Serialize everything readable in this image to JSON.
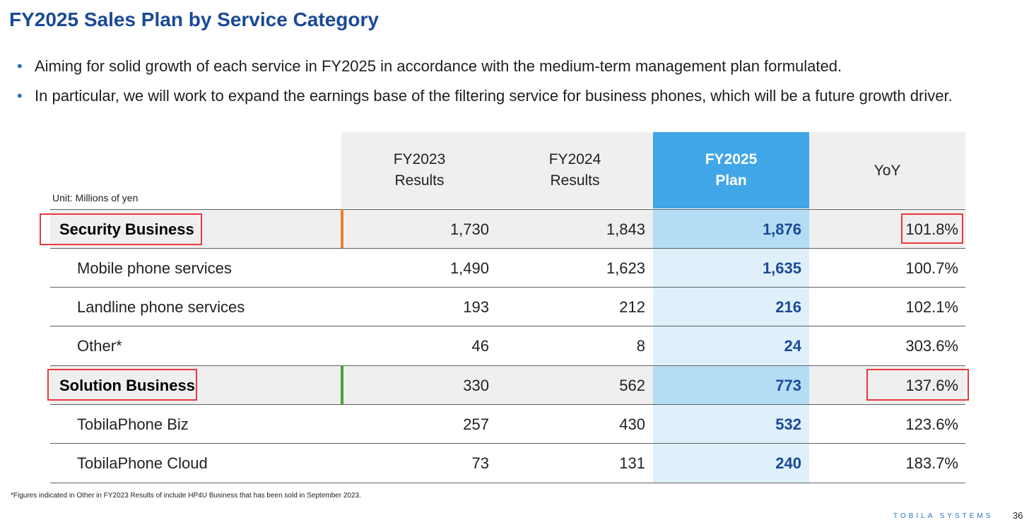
{
  "title": "FY2025 Sales Plan by Service Category",
  "bullets": [
    "Aiming for solid growth of each service in FY2025 in accordance with the medium-term management plan formulated.",
    "In particular, we will work to expand the earnings base of the filtering service for business phones, which will be a future growth driver."
  ],
  "table": {
    "unit": "Unit: Millions of yen",
    "headers": {
      "fy2023": [
        "FY2023",
        "Results"
      ],
      "fy2024": [
        "FY2024",
        "Results"
      ],
      "fy2025": [
        "FY2025",
        "Plan"
      ],
      "yoy": "YoY"
    },
    "rows": [
      {
        "label": "Security Business",
        "fy2023": "1,730",
        "fy2024": "1,843",
        "fy2025": "1,876",
        "yoy": "101.8%"
      },
      {
        "label": "Mobile phone services",
        "fy2023": "1,490",
        "fy2024": "1,623",
        "fy2025": "1,635",
        "yoy": "100.7%"
      },
      {
        "label": "Landline phone services",
        "fy2023": "193",
        "fy2024": "212",
        "fy2025": "216",
        "yoy": "102.1%"
      },
      {
        "label": "Other*",
        "fy2023": "46",
        "fy2024": "8",
        "fy2025": "24",
        "yoy": "303.6%"
      },
      {
        "label": "Solution Business",
        "fy2023": "330",
        "fy2024": "562",
        "fy2025": "773",
        "yoy": "137.6%"
      },
      {
        "label": "TobilaPhone Biz",
        "fy2023": "257",
        "fy2024": "430",
        "fy2025": "532",
        "yoy": "123.6%"
      },
      {
        "label": "TobilaPhone Cloud",
        "fy2023": "73",
        "fy2024": "131",
        "fy2025": "240",
        "yoy": "183.7%"
      }
    ]
  },
  "footnote": "*Figures indicated in Other in FY2023 Results of include HP4U Business that has been sold in September 2023.",
  "brand": "TOBILA SYSTEMS",
  "page_number": "36",
  "colors": {
    "title": "#1a4a97",
    "plan_header": "#41a6e8",
    "security_accent": "#ed7d31",
    "solution_accent": "#4aa038",
    "highlight_box": "#e8393f"
  }
}
